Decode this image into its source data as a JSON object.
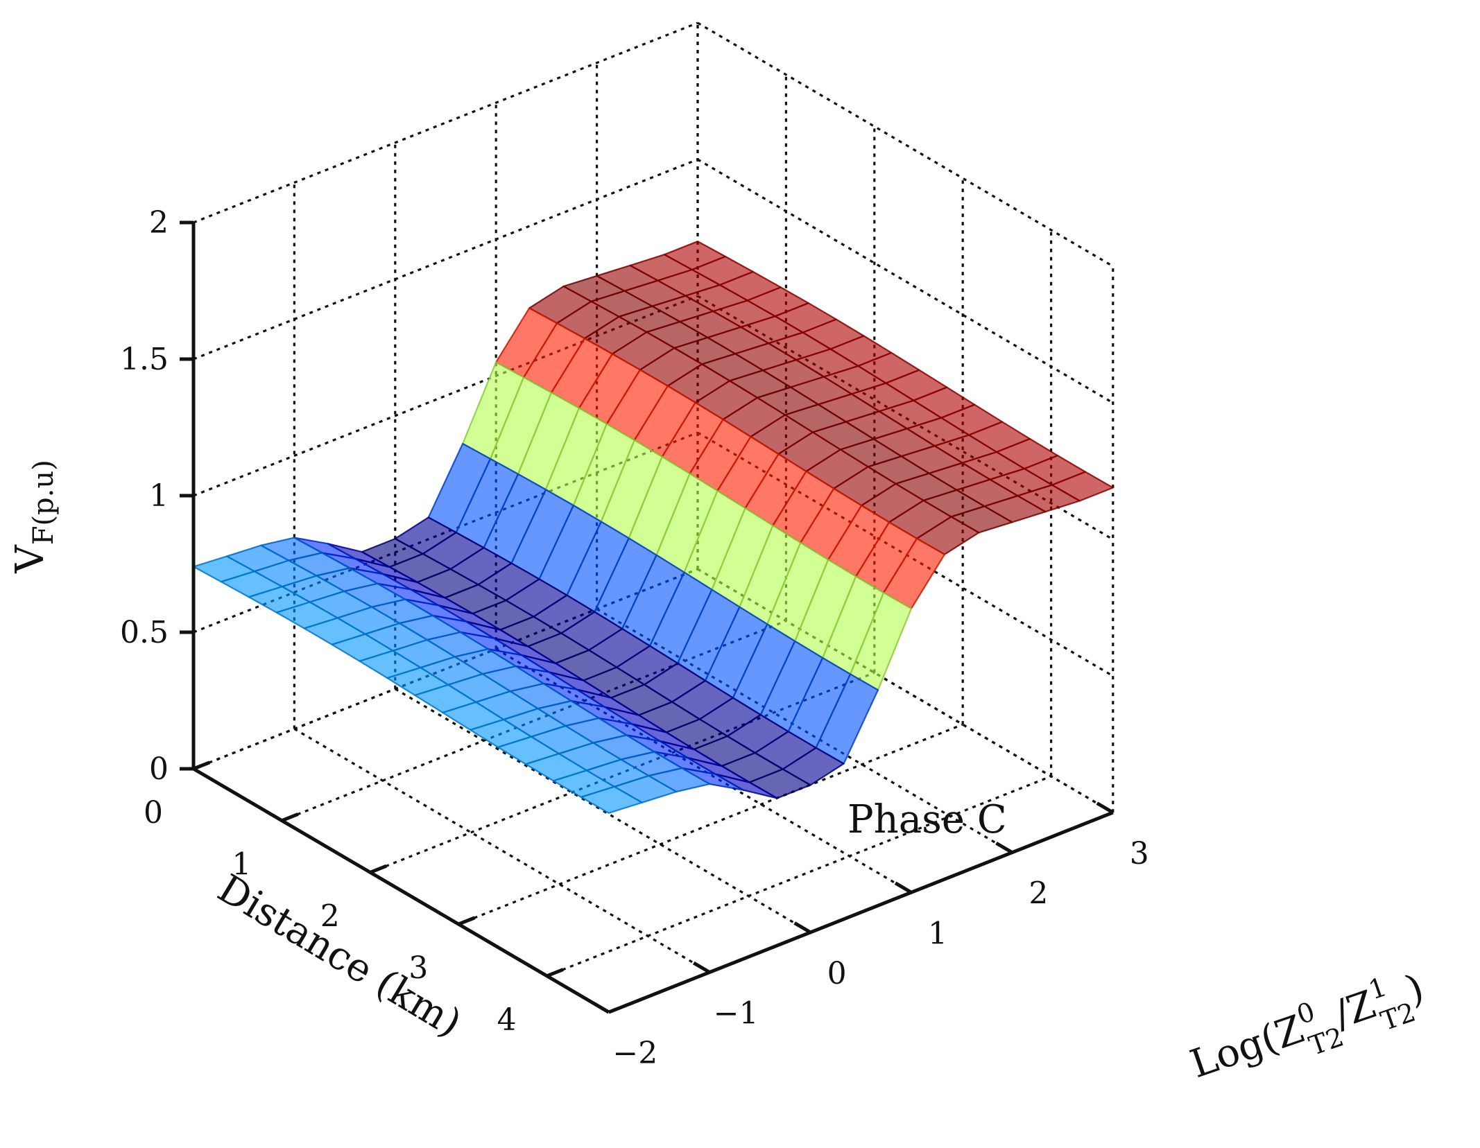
{
  "chart_data": {
    "type": "surface3d",
    "title": "",
    "annotation": "Phase C",
    "xlabel": "Distance (km)",
    "ylabel": {
      "prefix": "Log(Z",
      "sup1": "0",
      "sub1": "T2",
      "mid": "/Z",
      "sup2": "1",
      "sub2": "T2",
      "suffix": ")"
    },
    "zlabel": {
      "main": "V",
      "sub": "F(p.u)"
    },
    "x_ticks": [
      "0",
      "1",
      "2",
      "3",
      "4"
    ],
    "y_ticks": [
      "−2",
      "−1",
      "0",
      "1",
      "2",
      "3"
    ],
    "z_ticks": [
      "0",
      "0.5",
      "1",
      "1.5",
      "2"
    ],
    "xlim": [
      0,
      4.7
    ],
    "ylim": [
      -2,
      3
    ],
    "zlim": [
      0,
      2
    ],
    "grid": true,
    "colormap": "jet",
    "alpha": 0.6,
    "surface": {
      "x_range": [
        0,
        4.7
      ],
      "x_samples": 15,
      "y_samples": [
        -2,
        -1.67,
        -1.33,
        -1,
        -0.67,
        -0.33,
        0,
        0.33,
        0.67,
        1,
        1.33,
        1.67,
        2,
        2.33,
        2.67,
        3
      ],
      "z_profile": [
        0.74,
        0.73,
        0.72,
        0.7,
        0.63,
        0.55,
        0.55,
        0.58,
        0.8,
        1.05,
        1.2,
        1.23,
        1.22,
        1.21,
        1.2,
        1.2
      ]
    }
  }
}
